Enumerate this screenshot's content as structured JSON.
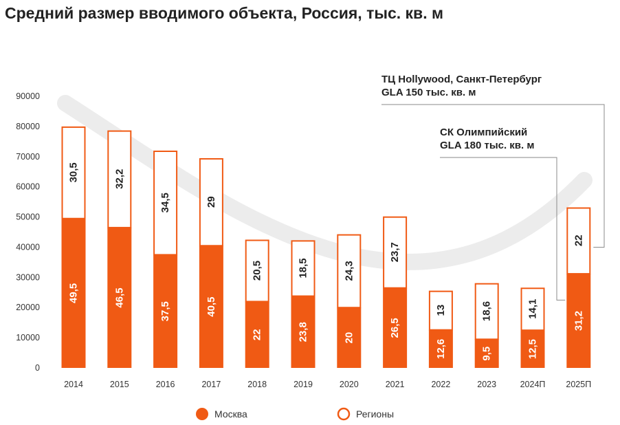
{
  "title": "Средний размер вводимого объекта, Россия, тыс. кв. м",
  "colors": {
    "moscow": "#f05a14",
    "regions_stroke": "#f05a14",
    "arc": "#ececec",
    "text": "#222222"
  },
  "chart_data": {
    "type": "bar",
    "stacked": true,
    "categories": [
      "2014",
      "2015",
      "2016",
      "2017",
      "2018",
      "2019",
      "2020",
      "2021",
      "2022",
      "2023",
      "2024П",
      "2025П"
    ],
    "yticks": [
      0,
      10000,
      20000,
      30000,
      40000,
      50000,
      60000,
      70000,
      80000,
      90000
    ],
    "ylim": [
      0,
      90000
    ],
    "series": [
      {
        "name": "Москва",
        "values": [
          49500,
          46500,
          37500,
          40500,
          22000,
          23800,
          20000,
          26500,
          12600,
          9500,
          12500,
          31200
        ],
        "labels": [
          "49,5",
          "46,5",
          "37,5",
          "40,5",
          "22",
          "23,8",
          "20",
          "26,5",
          "12,6",
          "9,5",
          "12,5",
          "31,2"
        ]
      },
      {
        "name": "Регионы",
        "values": [
          30500,
          32200,
          34500,
          29000,
          20500,
          18500,
          24300,
          23700,
          13000,
          18600,
          14100,
          22000
        ],
        "labels": [
          "30,5",
          "32,2",
          "34,5",
          "29",
          "20,5",
          "18,5",
          "24,3",
          "23,7",
          "13",
          "18,6",
          "14,1",
          "22"
        ]
      }
    ],
    "annotations": [
      {
        "lines": [
          "ТЦ Hollywood, Санкт-Петербург",
          "GLA 150 тыс. кв. м"
        ],
        "category": "2025П",
        "series": "Регионы"
      },
      {
        "lines": [
          "СК Олимпийский",
          "GLA 180 тыс. кв. м"
        ],
        "category": "2025П",
        "series": "Москва"
      }
    ],
    "legend": {
      "position": "bottom"
    },
    "grid": false
  }
}
